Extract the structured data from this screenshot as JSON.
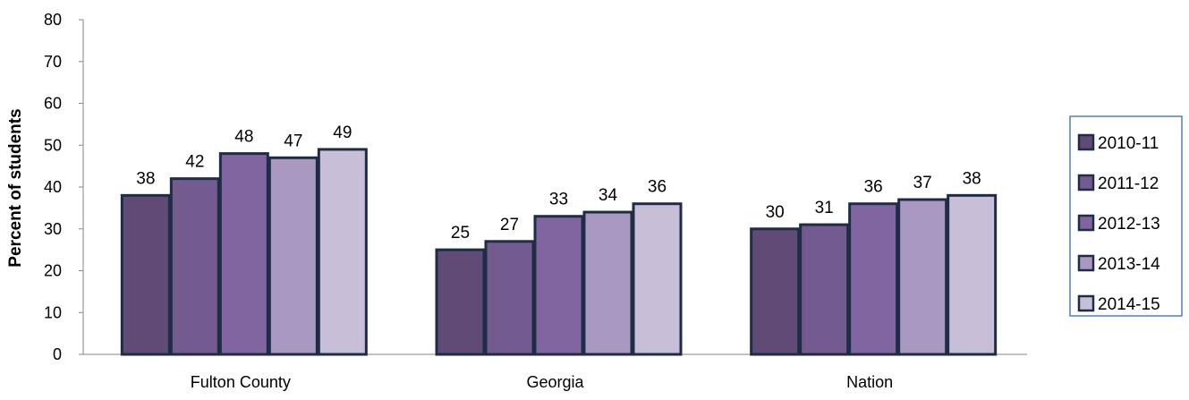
{
  "chart_data": {
    "type": "bar",
    "title": "",
    "xlabel": "",
    "ylabel": "Percent of students",
    "ylim": [
      0,
      80
    ],
    "yticks": [
      0,
      10,
      20,
      30,
      40,
      50,
      60,
      70,
      80
    ],
    "grid": false,
    "legend_position": "right",
    "categories": [
      "Fulton County",
      "Georgia",
      "Nation"
    ],
    "series": [
      {
        "name": "2010-11",
        "color": "#5f4b76",
        "values": [
          38,
          25,
          30
        ]
      },
      {
        "name": "2011-12",
        "color": "#735a8f",
        "values": [
          42,
          27,
          31
        ]
      },
      {
        "name": "2012-13",
        "color": "#8165a0",
        "values": [
          48,
          33,
          36
        ]
      },
      {
        "name": "2013-14",
        "color": "#a999c0",
        "values": [
          47,
          34,
          37
        ]
      },
      {
        "name": "2014-15",
        "color": "#c7bfd8",
        "values": [
          49,
          36,
          38
        ]
      }
    ],
    "bar_border_color": "#1e2d45",
    "legend_border_color": "#4f81bd"
  }
}
